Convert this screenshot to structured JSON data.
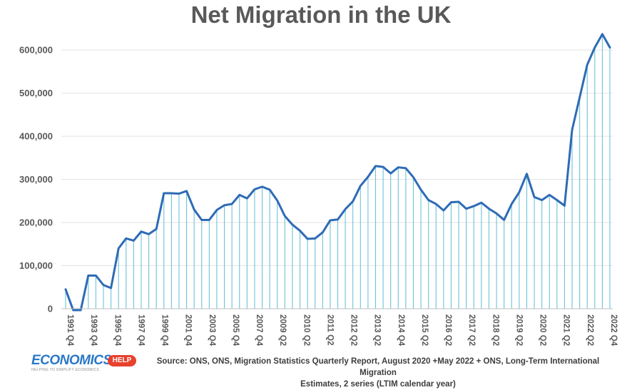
{
  "chart_data": {
    "type": "area",
    "title": "Net Migration in the UK",
    "xlabel": "",
    "ylabel": "",
    "ylim": [
      0,
      650000
    ],
    "y_ticks": [
      "0",
      "100,000",
      "200,000",
      "300,000",
      "400,000",
      "500,000",
      "600,000"
    ],
    "y_tick_values": [
      0,
      100000,
      200000,
      300000,
      400000,
      500000,
      600000
    ],
    "grid": true,
    "legend": "none",
    "line_color": "#2e6bb5",
    "fill_line_color": "#6cc3d9",
    "x_tick_labels": [
      "1991 Q4",
      "1993 Q4",
      "1995 Q4",
      "1997 Q4",
      "1999 Q4",
      "2001 Q4",
      "2003 Q4",
      "2005 Q4",
      "2007 Q4",
      "2009 Q2",
      "2010 Q2",
      "2011 Q2",
      "2012 Q2",
      "2013 Q2",
      "2014 Q4",
      "2015 Q2",
      "2016 Q2",
      "2017 Q2",
      "2018 Q2",
      "2019 Q2",
      "2020 Q2",
      "2021 Q2",
      "2022 Q2",
      "2022 Q4"
    ],
    "series": [
      {
        "values": [
          45000,
          -5000,
          -2000,
          77000,
          77000,
          55000,
          48000,
          140000,
          163000,
          158000,
          179000,
          173000,
          185000,
          268000,
          268000,
          267000,
          273000,
          230000,
          206000,
          206000,
          229000,
          240000,
          243000,
          264000,
          256000,
          277000,
          283000,
          276000,
          251000,
          215000,
          195000,
          181000,
          162000,
          163000,
          177000,
          205000,
          207000,
          231000,
          249000,
          285000,
          306000,
          331000,
          329000,
          314000,
          328000,
          326000,
          305000,
          276000,
          252000,
          243000,
          228000,
          247000,
          248000,
          232000,
          238000,
          246000,
          232000,
          221000,
          206000,
          243000,
          270000,
          313000,
          259000,
          252000,
          264000,
          252000,
          239000,
          415000,
          490000,
          566000,
          606000,
          637000,
          606000
        ]
      }
    ]
  },
  "source": {
    "line1": "Source: ONS, ONS, Migration Statistics Quarterly Report, August 2020 +May 2022 + ONS, Long-Term International Migration",
    "line2": "Estimates, 2 series (LTIM calendar year)"
  },
  "logo": {
    "word": "ECONOMICS",
    "badge": "HELP",
    "tagline": "HELPING TO SIMPLIFY ECONOMICS"
  }
}
